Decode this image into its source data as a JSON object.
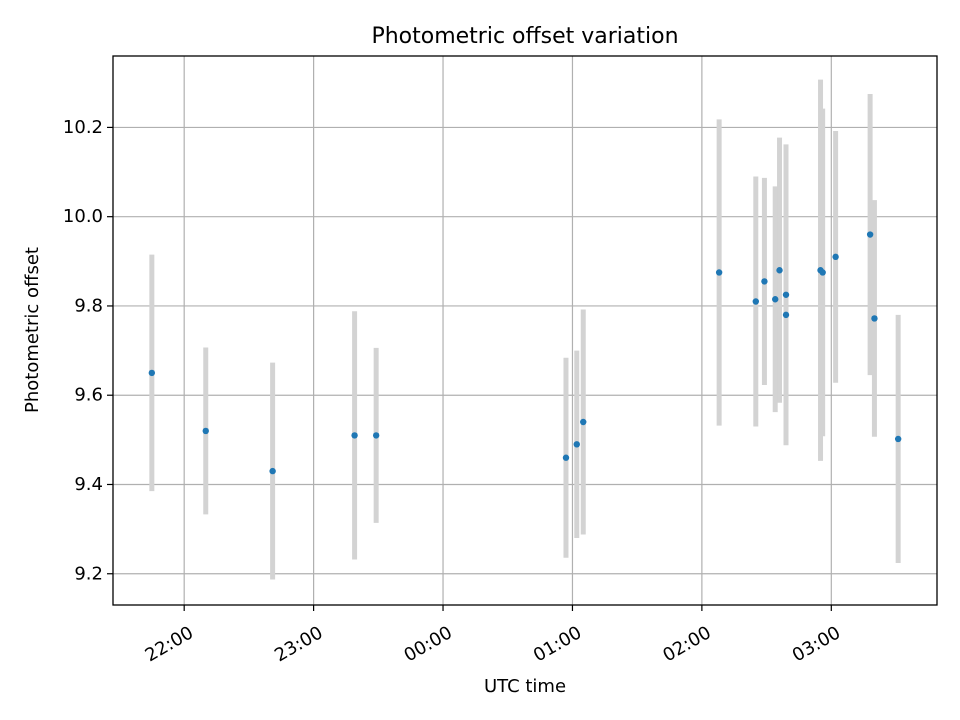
{
  "chart_data": {
    "type": "scatter",
    "title": "Photometric offset variation",
    "xlabel": "UTC time",
    "ylabel": "Photometric offset",
    "grid": true,
    "xlim": [
      "21:27",
      "03:49"
    ],
    "ylim": [
      9.13,
      10.36
    ],
    "x_ticks": [
      "22:00",
      "23:00",
      "00:00",
      "01:00",
      "02:00",
      "03:00"
    ],
    "y_ticks": [
      "9.2",
      "9.4",
      "9.6",
      "9.8",
      "10.0",
      "10.2"
    ],
    "colors": {
      "points": "#1f77b4",
      "errorbars": "#d3d3d3",
      "grid": "#b0b0b0"
    },
    "points": [
      {
        "time": "21:45",
        "y": 9.65,
        "err": 0.265
      },
      {
        "time": "22:10",
        "y": 9.52,
        "err": 0.187
      },
      {
        "time": "22:41",
        "y": 9.43,
        "err": 0.243
      },
      {
        "time": "23:19",
        "y": 9.51,
        "err": 0.278
      },
      {
        "time": "23:29",
        "y": 9.51,
        "err": 0.196
      },
      {
        "time": "00:57",
        "y": 9.46,
        "err": 0.224
      },
      {
        "time": "01:02",
        "y": 9.49,
        "err": 0.21
      },
      {
        "time": "01:05",
        "y": 9.54,
        "err": 0.252
      },
      {
        "time": "02:08",
        "y": 9.875,
        "err": 0.343
      },
      {
        "time": "02:25",
        "y": 9.81,
        "err": 0.28
      },
      {
        "time": "02:29",
        "y": 9.855,
        "err": 0.232
      },
      {
        "time": "02:34",
        "y": 9.815,
        "err": 0.253
      },
      {
        "time": "02:36",
        "y": 9.88,
        "err": 0.297
      },
      {
        "time": "02:39",
        "y": 9.825,
        "err": 0.337
      },
      {
        "time": "02:39",
        "y": 9.78,
        "err": 0.0
      },
      {
        "time": "02:55",
        "y": 9.88,
        "err": 0.427
      },
      {
        "time": "02:56",
        "y": 9.875,
        "err": 0.367
      },
      {
        "time": "03:02",
        "y": 9.91,
        "err": 0.282
      },
      {
        "time": "03:18",
        "y": 9.96,
        "err": 0.315
      },
      {
        "time": "03:20",
        "y": 9.772,
        "err": 0.265
      },
      {
        "time": "03:31",
        "y": 9.502,
        "err": 0.278
      }
    ]
  }
}
